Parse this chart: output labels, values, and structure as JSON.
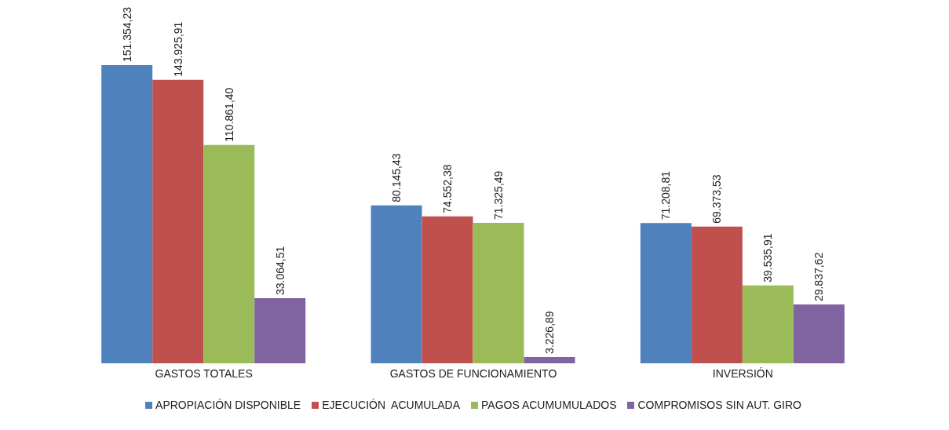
{
  "chart_data": {
    "type": "bar",
    "categories": [
      "GASTOS TOTALES",
      "GASTOS DE FUNCIONAMIENTO",
      "INVERSIÓN"
    ],
    "series": [
      {
        "name": "APROPIACIÓN DISPONIBLE",
        "color": "#4f81bd",
        "values": [
          151354.23,
          80145.43,
          71208.81
        ],
        "value_labels": [
          "151.354,23",
          "80.145,43",
          "71.208,81"
        ]
      },
      {
        "name": "EJECUCIÓN  ACUMULADA",
        "color": "#c0504d",
        "values": [
          143925.91,
          74552.38,
          69373.53
        ],
        "value_labels": [
          "143.925,91",
          "74.552,38",
          "69.373,53"
        ]
      },
      {
        "name": "PAGOS ACUMUMULADOS",
        "color": "#9bbb59",
        "values": [
          110861.4,
          71325.49,
          39535.91
        ],
        "value_labels": [
          "110.861,40",
          "71.325,49",
          "39.535,91"
        ]
      },
      {
        "name": "COMPROMISOS SIN AUT. GIRO",
        "color": "#8064a2",
        "values": [
          33064.51,
          3226.89,
          29837.62
        ],
        "value_labels": [
          "33.064,51",
          "3.226,89",
          "29.837,62"
        ]
      }
    ],
    "legend": "bottom",
    "grid": false
  }
}
